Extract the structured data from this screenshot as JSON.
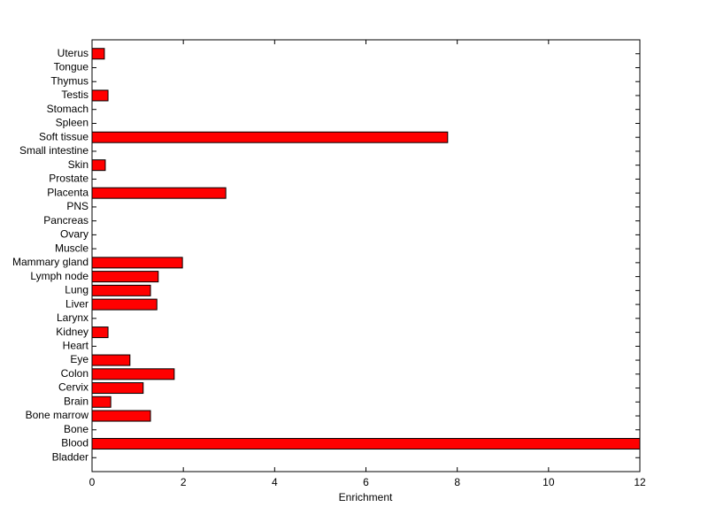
{
  "chart_data": {
    "type": "barh",
    "xlabel": "Enrichment",
    "categories": [
      "Bladder",
      "Blood",
      "Bone",
      "Bone marrow",
      "Brain",
      "Cervix",
      "Colon",
      "Eye",
      "Heart",
      "Kidney",
      "Larynx",
      "Liver",
      "Lung",
      "Lymph node",
      "Mammary gland",
      "Muscle",
      "Ovary",
      "Pancreas",
      "PNS",
      "Placenta",
      "Prostate",
      "Skin",
      "Small intestine",
      "Soft tissue",
      "Spleen",
      "Stomach",
      "Testis",
      "Thymus",
      "Tongue",
      "Uterus"
    ],
    "values": [
      0,
      12,
      0,
      1.28,
      0.41,
      1.12,
      1.8,
      0.83,
      0,
      0.35,
      0,
      1.42,
      1.28,
      1.45,
      1.98,
      0,
      0,
      0,
      0,
      2.93,
      0,
      0.29,
      0,
      7.79,
      0,
      0,
      0.35,
      0,
      0,
      0.27
    ],
    "color": "#ff0000",
    "xlim": [
      0,
      12
    ],
    "xticks": [
      0,
      2,
      4,
      6,
      8,
      10,
      12
    ]
  }
}
